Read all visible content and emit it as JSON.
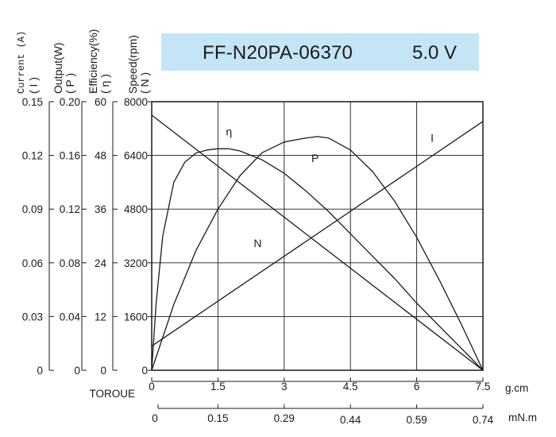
{
  "title": {
    "model": "FF-N20PA-06370",
    "voltage": "5.0 V",
    "box_color": "#c4e5f5"
  },
  "axis_headers": {
    "current": {
      "label": "Current (A)",
      "sub": "( I )"
    },
    "output": {
      "label": "Output(W)",
      "sub": "( P )"
    },
    "efficiency": {
      "label": "Efficiency(%)",
      "sub": "( η )"
    },
    "speed": {
      "label": "Speed(rpm)",
      "sub": "( N )"
    }
  },
  "chart_data": {
    "type": "line",
    "x_axis_title": "TOROUE",
    "x_unit": "g.cm",
    "x_unit2": "mN.m",
    "xlim": [
      0,
      7.5
    ],
    "x_ticks": [
      "0",
      "1.5",
      "3",
      "4.5",
      "6",
      "7.5"
    ],
    "x_ticks2": [
      "0",
      "0.15",
      "0.29",
      "0.44",
      "0.59",
      "0.74"
    ],
    "y_axes": {
      "current": {
        "range": [
          0,
          0.15
        ],
        "ticks": [
          "0",
          "0.03",
          "0.06",
          "0.09",
          "0.12",
          "0.15"
        ]
      },
      "output": {
        "range": [
          0,
          0.2
        ],
        "ticks": [
          "0",
          "0.04",
          "0.08",
          "0.12",
          "0.16",
          "0.20"
        ]
      },
      "efficiency": {
        "range": [
          0,
          60
        ],
        "ticks": [
          "0",
          "12",
          "24",
          "36",
          "48",
          "60"
        ]
      },
      "speed": {
        "range": [
          0,
          8000
        ],
        "ticks": [
          "0",
          "1600",
          "3200",
          "4800",
          "6400",
          "8000"
        ]
      }
    },
    "grid": true,
    "series": [
      {
        "name": "N",
        "axis": "speed",
        "x": [
          0,
          7.5
        ],
        "y": [
          7600,
          0
        ]
      },
      {
        "name": "I",
        "axis": "current",
        "x": [
          0,
          7.5
        ],
        "y": [
          0.0135,
          0.139
        ]
      },
      {
        "name": "P",
        "axis": "output",
        "x": [
          0,
          0.5,
          1.0,
          1.5,
          2.0,
          2.5,
          3.0,
          3.5,
          3.75,
          4.0,
          4.5,
          5.0,
          5.5,
          6.0,
          6.5,
          7.0,
          7.5
        ],
        "y": [
          0,
          0.049,
          0.089,
          0.12,
          0.145,
          0.162,
          0.17,
          0.173,
          0.174,
          0.173,
          0.164,
          0.148,
          0.126,
          0.099,
          0.068,
          0.035,
          0
        ]
      },
      {
        "name": "η",
        "axis": "efficiency",
        "x": [
          0,
          0.1,
          0.25,
          0.5,
          0.75,
          1.0,
          1.25,
          1.5,
          1.75,
          2.0,
          2.5,
          3.0,
          3.5,
          4.0,
          4.5,
          5.0,
          5.5,
          6.0,
          6.5,
          7.0,
          7.5
        ],
        "y": [
          0,
          15,
          30,
          42,
          46.5,
          48.5,
          49.2,
          49.5,
          49.5,
          49.0,
          47.0,
          44.0,
          40.0,
          35.5,
          30.5,
          25.5,
          20.5,
          15.0,
          10.0,
          5.0,
          0
        ]
      }
    ],
    "curve_labels": [
      {
        "name": "η",
        "x": 1.75,
        "y_speed": 7000
      },
      {
        "name": "P",
        "x": 3.7,
        "y_speed": 6200
      },
      {
        "name": "I",
        "x": 6.35,
        "y_speed": 6800
      },
      {
        "name": "N",
        "x": 2.4,
        "y_speed": 3670
      }
    ]
  }
}
